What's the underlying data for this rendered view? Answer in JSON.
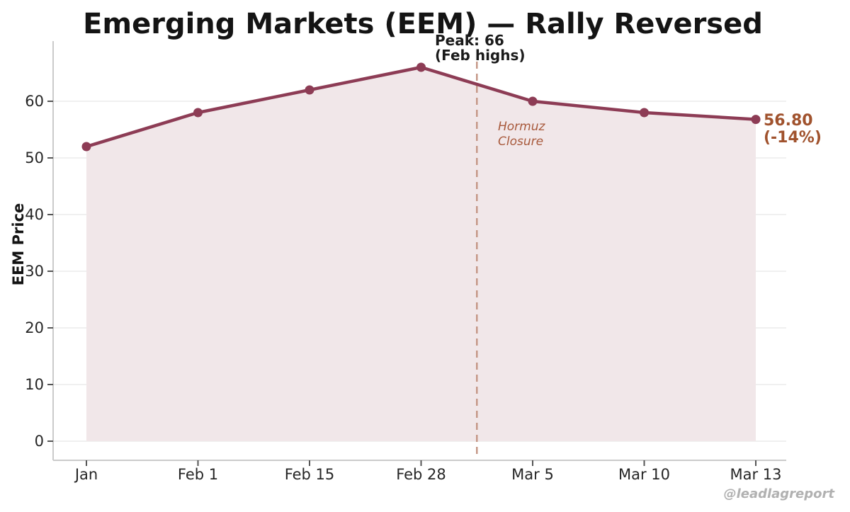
{
  "figure": {
    "watermark": "@leadlagreport",
    "background": "#ffffff"
  },
  "chart_data": {
    "type": "area",
    "title": "Emerging Markets (EEM) — Rally Reversed",
    "xlabel": "",
    "ylabel": "EEM Price",
    "categories": [
      "Jan",
      "Feb 1",
      "Feb 15",
      "Feb 28",
      "Mar 5",
      "Mar 10",
      "Mar 13"
    ],
    "values": [
      52,
      58,
      62,
      66,
      60,
      58,
      56.8
    ],
    "yticks": [
      0,
      10,
      20,
      30,
      40,
      50,
      60
    ],
    "ylim": [
      -3.4,
      70.6
    ],
    "grid": "horizontal",
    "legend": "none",
    "colors": {
      "line": "#8d3c55",
      "fill": "#f1e7e9",
      "grid": "#ebebeb",
      "spine": "#cbcbcb",
      "tick": "#555555",
      "title_text": "#141414",
      "tick_text": "#262626",
      "peak_text": "#1a1a1a",
      "event_line": "#c49584",
      "event_text": "#a8593b",
      "annotation": "#a0522d",
      "watermark": "#b1b1b1"
    },
    "annotations": {
      "peak": {
        "line1": "Peak: 66",
        "line2": "(Feb highs)",
        "x_index": 3,
        "y_value": 66
      },
      "event": {
        "line1": "Hormuz",
        "line2": "Closure",
        "x_index": 3.5,
        "style": "dashed-vertical"
      },
      "last_price": {
        "line1": "56.80",
        "line2": "(-14%)",
        "x_index": 6,
        "y_value": 56.8
      }
    }
  }
}
